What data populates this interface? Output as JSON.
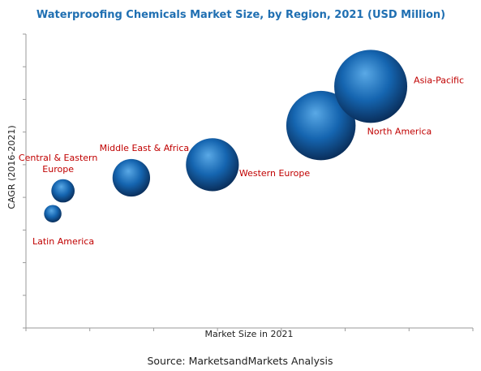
{
  "chart_data": {
    "type": "bubble",
    "title": "Waterproofing Chemicals Market Size, by Region, 2021 (USD Million)",
    "xlabel": "Market Size in 2021",
    "ylabel": "CAGR (2016-2021)",
    "xlim": [
      0,
      70
    ],
    "ylim": [
      0,
      9
    ],
    "grid": false,
    "legend": "none",
    "points": [
      {
        "name": "Latin America",
        "x": 4.2,
        "y": 3.5,
        "size": 0.33
      },
      {
        "name": "Central & Eastern Europe",
        "x": 5.8,
        "y": 4.2,
        "size": 0.44
      },
      {
        "name": "Middle East & Africa",
        "x": 16.5,
        "y": 4.6,
        "size": 0.71
      },
      {
        "name": "Western Europe",
        "x": 29.2,
        "y": 5.0,
        "size": 1.0
      },
      {
        "name": "North America",
        "x": 46.2,
        "y": 6.2,
        "size": 1.31
      },
      {
        "name": "Asia-Pacific",
        "x": 54.0,
        "y": 7.4,
        "size": 1.38
      }
    ]
  },
  "source": "Source: MarketsandMarkets Analysis",
  "colors": {
    "title": "#1f6fb2",
    "label": "#c00000",
    "axis": "#9a9a9a",
    "bubble_light": "#5aa9e6",
    "bubble_mid": "#1565b0",
    "bubble_dark": "#0a2f5c"
  }
}
